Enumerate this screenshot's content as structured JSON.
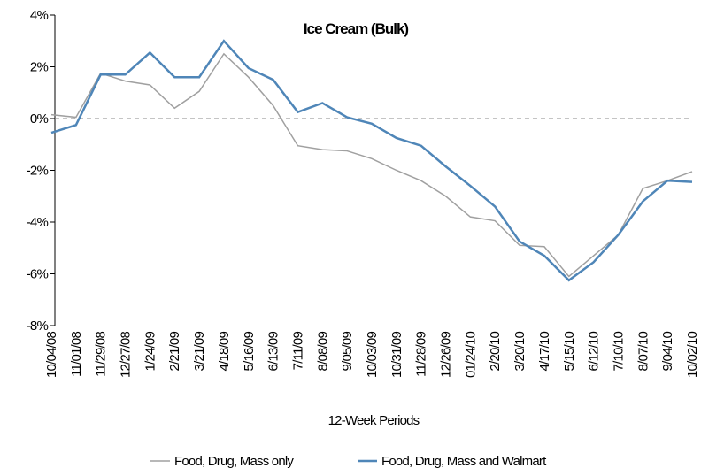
{
  "chart_data": {
    "type": "line",
    "title": "Ice Cream (Bulk)",
    "x_label": "12-Week Periods",
    "categories": [
      "10/04/08",
      "11/01/08",
      "11/29/08",
      "12/27/08",
      "1/24/09",
      "2/21/09",
      "3/21/09",
      "4/18/09",
      "5/16/09",
      "6/13/09",
      "7/11/09",
      "8/08/09",
      "9/05/09",
      "10/03/09",
      "10/31/09",
      "11/28/09",
      "12/26/09",
      "01/24/10",
      "2/20/10",
      "3/20/10",
      "4/17/10",
      "5/15/10",
      "6/12/10",
      "7/10/10",
      "8/07/10",
      "9/04/10",
      "10/02/10"
    ],
    "series": [
      {
        "name": "Food, Drug, Mass only",
        "color": "#a0a0a0",
        "values": [
          0.15,
          0.05,
          1.75,
          1.45,
          1.3,
          0.4,
          1.05,
          2.5,
          1.6,
          0.5,
          -1.05,
          -1.2,
          -1.25,
          -1.55,
          -2.0,
          -2.4,
          -3.0,
          -3.8,
          -3.95,
          -4.9,
          -4.95,
          -6.1,
          -5.3,
          -4.5,
          -2.7,
          -2.4,
          -2.05
        ]
      },
      {
        "name": "Food, Drug, Mass and Walmart",
        "color": "#4f86b8",
        "values": [
          -0.55,
          -0.25,
          1.7,
          1.7,
          2.55,
          1.6,
          1.6,
          3.0,
          1.95,
          1.5,
          0.25,
          0.6,
          0.05,
          -0.2,
          -0.75,
          -1.05,
          -1.85,
          -2.6,
          -3.4,
          -4.75,
          -5.3,
          -6.25,
          -5.55,
          -4.5,
          -3.2,
          -2.4,
          -2.45
        ]
      }
    ],
    "ylim": [
      -8,
      4
    ],
    "yticks": [
      {
        "value": -8,
        "label": "-8%"
      },
      {
        "value": -6,
        "label": "-6%"
      },
      {
        "value": -4,
        "label": "-4%"
      },
      {
        "value": -2,
        "label": "-2%"
      },
      {
        "value": 0,
        "label": "0%"
      },
      {
        "value": 2,
        "label": "2%"
      },
      {
        "value": 4,
        "label": "4%"
      }
    ],
    "zero_line": true,
    "legend": "bottom"
  }
}
